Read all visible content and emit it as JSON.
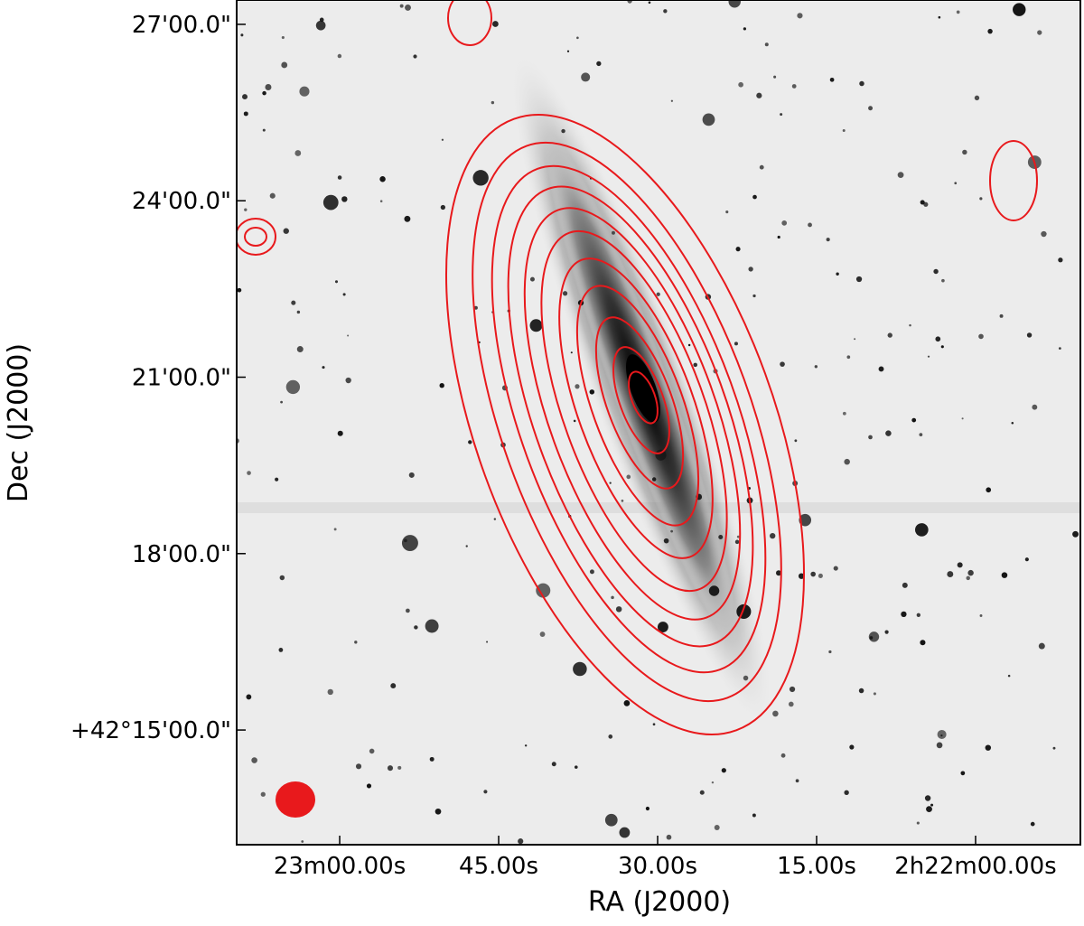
{
  "chart_data": {
    "type": "image",
    "xlabel": "RA (J2000)",
    "ylabel": "Dec (J2000)",
    "xlim": [
      35.7905,
      35.4588
    ],
    "ylim": [
      42.2175,
      42.4569
    ],
    "xticks": [
      {
        "value": 35.75,
        "label": "23m00.00s"
      },
      {
        "value": 35.6875,
        "label": "45.00s"
      },
      {
        "value": 35.625,
        "label": "30.00s"
      },
      {
        "value": 35.5625,
        "label": "15.00s"
      },
      {
        "value": 35.5,
        "label": "2h22m00.00s"
      }
    ],
    "yticks": [
      {
        "value": 42.45,
        "label": "27'00.0\""
      },
      {
        "value": 42.4,
        "label": "24'00.0\""
      },
      {
        "value": 42.35,
        "label": "21'00.0\""
      },
      {
        "value": 42.3,
        "label": "18'00.0\""
      },
      {
        "value": 42.25,
        "label": "+42°15'00.0\""
      }
    ],
    "contour_color": "#e8191c"
  }
}
